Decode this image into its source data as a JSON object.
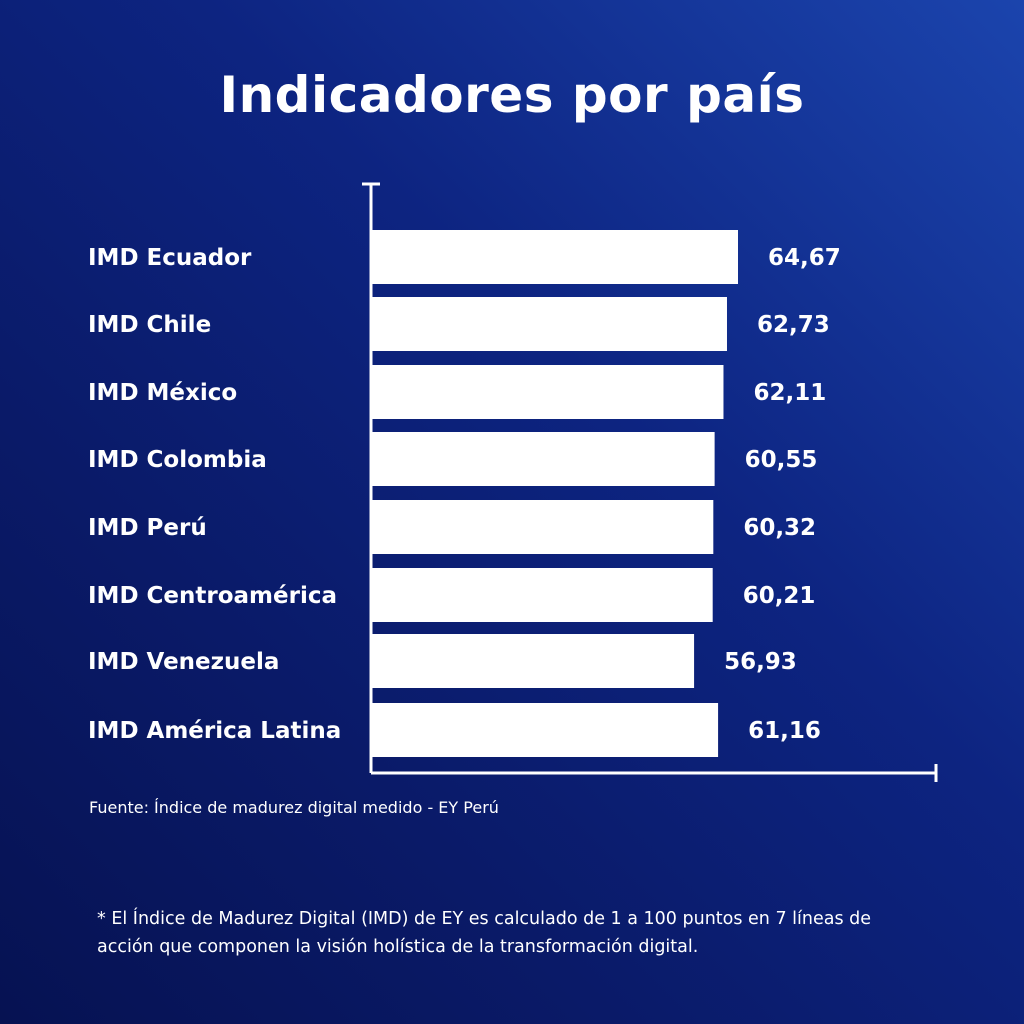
{
  "title": "Indicadores por país",
  "source": "Fuente: Índice de madurez digital medido - EY Perú",
  "footnote": "* El Índice de Madurez Digital (IMD) de EY es calculado de 1 a 100 puntos en 7 líneas de acción que componen la visión holística de la transformación digital.",
  "colors": {
    "bar": "#ffffff",
    "axis": "#ffffff",
    "text": "#ffffff"
  },
  "chart_data": {
    "type": "bar",
    "orientation": "horizontal",
    "title": "Indicadores por país",
    "categories": [
      "IMD Ecuador",
      "IMD Chile",
      "IMD México",
      "IMD Colombia",
      "IMD Perú",
      "IMD Centroamérica",
      "IMD Venezuela",
      "IMD América Latina"
    ],
    "values": [
      64.67,
      62.73,
      62.11,
      60.55,
      60.32,
      60.21,
      56.93,
      61.16
    ],
    "value_labels": [
      "64,67",
      "62,73",
      "62,11",
      "60,55",
      "60,32",
      "60,21",
      "56,93",
      "61,16"
    ],
    "xlim": [
      0,
      100
    ],
    "grid": false,
    "legend": "none"
  }
}
